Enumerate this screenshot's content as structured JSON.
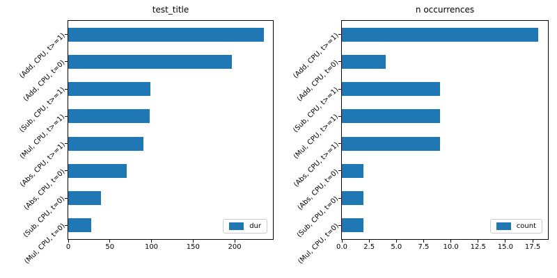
{
  "colors": {
    "bar": "#1f77b4",
    "background": "#ffffff",
    "spine": "#000000",
    "legend_border": "#cccccc"
  },
  "chart_data": [
    {
      "type": "bar",
      "orientation": "horizontal",
      "title": "test_title",
      "categories": [
        "(Add, CPU, t>=1)",
        "(Add, CPU, t=0)",
        "(Sub, CPU, t>=1)",
        "(Mul, CPU, t>=1)",
        "(Abs, CPU, t>=1)",
        "(Abs, CPU, t=0)",
        "(Sub, CPU, t=0)",
        "(Mul, CPU, t=0)"
      ],
      "series": [
        {
          "name": "dur",
          "values": [
            235,
            197,
            99,
            98,
            90,
            70,
            39,
            28
          ]
        }
      ],
      "xlim": [
        0,
        246
      ],
      "x_tick_values": [
        0,
        50,
        100,
        150,
        200
      ],
      "x_tick_labels": [
        "0",
        "50",
        "100",
        "150",
        "200"
      ],
      "legend": {
        "entries": [
          "dur"
        ],
        "position": "lower right"
      },
      "grid": false,
      "bar_color": "#1f77b4"
    },
    {
      "type": "bar",
      "orientation": "horizontal",
      "title": "n occurrences",
      "categories": [
        "(Add, CPU, t>=1)",
        "(Add, CPU, t=0)",
        "(Sub, CPU, t>=1)",
        "(Mul, CPU, t>=1)",
        "(Abs, CPU, t>=1)",
        "(Abs, CPU, t=0)",
        "(Sub, CPU, t=0)",
        "(Mul, CPU, t=0)"
      ],
      "series": [
        {
          "name": "count",
          "values": [
            18,
            4,
            9,
            9,
            9,
            2,
            2,
            2
          ]
        }
      ],
      "xlim": [
        0,
        18.9
      ],
      "x_tick_values": [
        0,
        2.5,
        5,
        7.5,
        10,
        12.5,
        15,
        17.5
      ],
      "x_tick_labels": [
        "0.0",
        "2.5",
        "5.0",
        "7.5",
        "10.0",
        "12.5",
        "15.0",
        "17.5"
      ],
      "legend": {
        "entries": [
          "count"
        ],
        "position": "lower right"
      },
      "grid": false,
      "bar_color": "#1f77b4"
    }
  ]
}
